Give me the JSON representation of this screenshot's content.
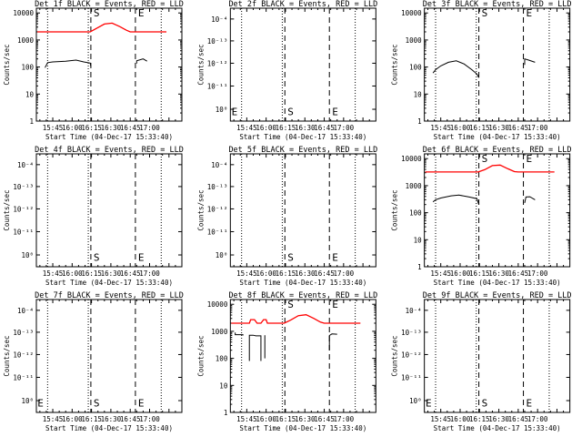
{
  "chart_data": [
    {
      "type": "line",
      "title": "Det 1f BLACK = Events, RED = LLD",
      "xlabel": "Start Time (04-Dec-17 15:33:40)",
      "ylabel": "Counts/sec",
      "yscale": "log",
      "ylim": [
        1,
        15000
      ],
      "yticks": [
        1,
        10,
        100,
        1000,
        10000
      ],
      "yticklabels": [
        "1",
        "10",
        "100",
        "1000",
        "10000"
      ],
      "xticks": [
        0,
        15,
        30,
        45,
        60,
        75,
        90
      ],
      "xticklabels": [
        "15:45",
        "16:00",
        "16:15",
        "16:30",
        "16:45",
        "17:00",
        ""
      ],
      "xlim": [
        -12.7,
        100
      ],
      "dotted_lines": [
        -4,
        27.5,
        84
      ],
      "dashed_lines": [
        29.5,
        64
      ],
      "markers": [
        {
          "label": "S",
          "x": 29.5
        },
        {
          "label": "E",
          "x": 64
        }
      ],
      "marker_y": 10000,
      "series": [
        {
          "color": "#000000",
          "segments": [
            [
              [
                -6,
                95
              ],
              [
                -4,
                145
              ],
              [
                0,
                155
              ],
              [
                10,
                165
              ],
              [
                18,
                180
              ],
              [
                24,
                155
              ],
              [
                29,
                140
              ],
              [
                29.5,
                105
              ]
            ],
            [
              [
                65,
                135
              ],
              [
                65,
                170
              ],
              [
                70,
                200
              ],
              [
                73,
                165
              ]
            ]
          ]
        },
        {
          "color": "#ff0000",
          "segments": [
            [
              [
                -12,
                2000
              ],
              [
                29,
                2000
              ],
              [
                34,
                2700
              ],
              [
                40,
                3900
              ],
              [
                46,
                4200
              ],
              [
                52,
                3100
              ],
              [
                57,
                2300
              ],
              [
                60,
                2000
              ],
              [
                88,
                2000
              ]
            ]
          ]
        }
      ]
    },
    {
      "type": "line",
      "title": "Det 2f BLACK = Events, RED = LLD",
      "xlabel": "Start Time (04-Dec-17 15:33:40)",
      "ylabel": "Counts/sec",
      "yscale": "log",
      "ylim": [
        0.95,
        1.05
      ],
      "yticks": [
        0.96,
        0.98,
        1.0,
        1.02,
        1.04
      ],
      "yticklabels": [
        "10⁰",
        "10⁻¹¹",
        "10⁻¹²",
        "10⁻¹³",
        "10⁻⁴"
      ],
      "xticks": [
        0,
        15,
        30,
        45,
        60,
        75,
        90
      ],
      "xticklabels": [
        "15:45",
        "16:00",
        "16:15",
        "16:30",
        "16:45",
        "17:00",
        ""
      ],
      "xlim": [
        -12.7,
        100
      ],
      "dotted_lines": [
        -4,
        27.5,
        84
      ],
      "dashed_lines": [
        29.5,
        64
      ],
      "markers": [
        {
          "label": "E",
          "x": -12.5
        },
        {
          "label": "S",
          "x": 29.5
        },
        {
          "label": "E",
          "x": 64
        }
      ],
      "marker_y": 0.958,
      "series": []
    },
    {
      "type": "line",
      "title": "Det 3f BLACK = Events, RED = LLD",
      "xlabel": "Start Time (04-Dec-17 15:33:40)",
      "ylabel": "Counts/sec",
      "yscale": "log",
      "ylim": [
        1,
        15000
      ],
      "yticks": [
        1,
        10,
        100,
        1000,
        10000
      ],
      "yticklabels": [
        "1",
        "10",
        "100",
        "1000",
        "10000"
      ],
      "xticks": [
        0,
        15,
        30,
        45,
        60,
        75,
        90
      ],
      "xticklabels": [
        "15:45",
        "16:00",
        "16:15",
        "16:30",
        "16:45",
        "17:00",
        ""
      ],
      "xlim": [
        -12.7,
        100
      ],
      "dotted_lines": [
        -4,
        27.5,
        84
      ],
      "dashed_lines": [
        29.5,
        64
      ],
      "markers": [
        {
          "label": "S",
          "x": 29.5
        },
        {
          "label": "E",
          "x": 64
        }
      ],
      "marker_y": 10000,
      "series": [
        {
          "color": "#000000",
          "segments": [
            [
              [
                -6,
                60
              ],
              [
                -4,
                80
              ],
              [
                0,
                110
              ],
              [
                6,
                150
              ],
              [
                12,
                170
              ],
              [
                18,
                130
              ],
              [
                24,
                80
              ],
              [
                28,
                55
              ],
              [
                29.5,
                40
              ]
            ],
            [
              [
                65,
                120
              ],
              [
                65,
                200
              ],
              [
                68,
                180
              ],
              [
                73,
                150
              ]
            ]
          ]
        }
      ]
    },
    {
      "type": "line",
      "title": "Det 4f BLACK = Events, RED = LLD",
      "xlabel": "Start Time (04-Dec-17 15:33:40)",
      "ylabel": "Counts/sec",
      "yscale": "log",
      "ylim": [
        0.95,
        1.05
      ],
      "yticks": [
        0.96,
        0.98,
        1.0,
        1.02,
        1.04
      ],
      "yticklabels": [
        "10⁰",
        "10⁻¹¹",
        "10⁻¹²",
        "10⁻¹³",
        "10⁻⁴"
      ],
      "xticks": [
        0,
        15,
        30,
        45,
        60,
        75,
        90
      ],
      "xticklabels": [
        "15:45",
        "16:00",
        "16:15",
        "16:30",
        "16:45",
        "17:00",
        ""
      ],
      "xlim": [
        -12.7,
        100
      ],
      "dotted_lines": [
        -4,
        27.5,
        84
      ],
      "dashed_lines": [
        29.5,
        64
      ],
      "markers": [
        {
          "label": "S",
          "x": 29.5
        },
        {
          "label": "E",
          "x": 64
        }
      ],
      "marker_y": 0.958,
      "series": []
    },
    {
      "type": "line",
      "title": "Det 5f BLACK = Events, RED = LLD",
      "xlabel": "Start Time (04-Dec-17 15:33:40)",
      "ylabel": "Counts/sec",
      "yscale": "log",
      "ylim": [
        0.95,
        1.05
      ],
      "yticks": [
        0.96,
        0.98,
        1.0,
        1.02,
        1.04
      ],
      "yticklabels": [
        "10⁰",
        "10⁻¹¹",
        "10⁻¹²",
        "10⁻¹³",
        "10⁻⁴"
      ],
      "xticks": [
        0,
        15,
        30,
        45,
        60,
        75,
        90
      ],
      "xticklabels": [
        "15:45",
        "16:00",
        "16:15",
        "16:30",
        "16:45",
        "17:00",
        ""
      ],
      "xlim": [
        -12.7,
        100
      ],
      "dotted_lines": [
        -4,
        27.5,
        84
      ],
      "dashed_lines": [
        29.5,
        64
      ],
      "markers": [
        {
          "label": "S",
          "x": 29.5
        },
        {
          "label": "E",
          "x": 64
        }
      ],
      "marker_y": 0.958,
      "series": []
    },
    {
      "type": "line",
      "title": "Det 6f BLACK = Events, RED = LLD",
      "xlabel": "Start Time (04-Dec-17 15:33:40)",
      "ylabel": "Counts/sec",
      "yscale": "log",
      "ylim": [
        1,
        15000
      ],
      "yticks": [
        1,
        10,
        100,
        1000,
        10000
      ],
      "yticklabels": [
        "1",
        "10",
        "100",
        "1000",
        "10000"
      ],
      "xticks": [
        0,
        15,
        30,
        45,
        60,
        75,
        90
      ],
      "xticklabels": [
        "15:45",
        "16:00",
        "16:15",
        "16:30",
        "16:45",
        "17:00",
        ""
      ],
      "xlim": [
        -12.7,
        100
      ],
      "dotted_lines": [
        -4,
        27.5,
        84
      ],
      "dashed_lines": [
        29.5,
        64
      ],
      "markers": [
        {
          "label": "S",
          "x": 29.5
        },
        {
          "label": "E",
          "x": 64
        }
      ],
      "marker_y": 10000,
      "series": [
        {
          "color": "#000000",
          "segments": [
            [
              [
                -6,
                250
              ],
              [
                -4,
                300
              ],
              [
                0,
                350
              ],
              [
                8,
                420
              ],
              [
                14,
                450
              ],
              [
                22,
                380
              ],
              [
                28,
                330
              ],
              [
                29.5,
                200
              ]
            ],
            [
              [
                65,
                230
              ],
              [
                66,
                380
              ],
              [
                69,
                390
              ],
              [
                73,
                300
              ]
            ]
          ]
        },
        {
          "color": "#ff0000",
          "segments": [
            [
              [
                -12,
                3200
              ],
              [
                29,
                3200
              ],
              [
                34,
                3900
              ],
              [
                40,
                5500
              ],
              [
                46,
                5800
              ],
              [
                52,
                4200
              ],
              [
                57,
                3300
              ],
              [
                60,
                3200
              ],
              [
                88,
                3200
              ]
            ]
          ]
        }
      ]
    },
    {
      "type": "line",
      "title": "Det 7f BLACK = Events, RED = LLD",
      "xlabel": "Start Time (04-Dec-17 15:33:40)",
      "ylabel": "Counts/sec",
      "yscale": "log",
      "ylim": [
        0.95,
        1.05
      ],
      "yticks": [
        0.96,
        0.98,
        1.0,
        1.02,
        1.04
      ],
      "yticklabels": [
        "10⁰",
        "10⁻¹¹",
        "10⁻¹²",
        "10⁻¹³",
        "10⁻⁴"
      ],
      "xticks": [
        0,
        15,
        30,
        45,
        60,
        75,
        90
      ],
      "xticklabels": [
        "15:45",
        "16:00",
        "16:15",
        "16:30",
        "16:45",
        "17:00",
        ""
      ],
      "xlim": [
        -12.7,
        100
      ],
      "dotted_lines": [
        -4,
        27.5,
        84
      ],
      "dashed_lines": [
        29.5,
        64
      ],
      "markers": [
        {
          "label": "E",
          "x": -12.5
        },
        {
          "label": "S",
          "x": 29.5
        },
        {
          "label": "E",
          "x": 64
        }
      ],
      "marker_y": 0.958,
      "series": []
    },
    {
      "type": "line",
      "title": "Det 8f BLACK = Events, RED = LLD",
      "xlabel": "Start Time (04-Dec-17 15:33:40)",
      "ylabel": "Counts/sec",
      "yscale": "log",
      "ylim": [
        1,
        15000
      ],
      "yticks": [
        1,
        10,
        100,
        1000,
        10000
      ],
      "yticklabels": [
        "1",
        "10",
        "100",
        "1000",
        "10000"
      ],
      "xticks": [
        0,
        15,
        30,
        45,
        60,
        75,
        90
      ],
      "xticklabels": [
        "15:45",
        "16:00",
        "16:15",
        "16:30",
        "16:45",
        "17:00",
        ""
      ],
      "xlim": [
        -12.7,
        100
      ],
      "dotted_lines": [
        -4,
        27.5,
        84
      ],
      "dashed_lines": [
        29.5,
        64
      ],
      "markers": [
        {
          "label": "S",
          "x": 29.5
        },
        {
          "label": "E",
          "x": 64
        }
      ],
      "marker_y": 10000,
      "series": [
        {
          "color": "#000000",
          "segments": [
            [
              [
                -9,
                900
              ],
              [
                -9,
                750
              ],
              [
                -3,
                750
              ],
              [
                -3,
                700
              ]
            ],
            [
              [
                2,
                720
              ],
              [
                2,
                80
              ],
              [
                2,
                720
              ],
              [
                5,
                720
              ],
              [
                7,
                680
              ],
              [
                11,
                680
              ],
              [
                11,
                80
              ]
            ],
            [
              [
                14,
                720
              ],
              [
                14,
                100
              ]
            ],
            [
              [
                64,
                200
              ],
              [
                64,
                700
              ],
              [
                66,
                800
              ],
              [
                70,
                780
              ]
            ]
          ]
        },
        {
          "color": "#ff0000",
          "segments": [
            [
              [
                -12,
                2000
              ],
              [
                2,
                2000
              ],
              [
                3,
                2700
              ],
              [
                6,
                2700
              ],
              [
                8,
                2000
              ],
              [
                11,
                2000
              ],
              [
                13,
                2700
              ],
              [
                15,
                2700
              ],
              [
                16,
                2000
              ],
              [
                29,
                2000
              ],
              [
                34,
                2600
              ],
              [
                40,
                3800
              ],
              [
                46,
                4100
              ],
              [
                52,
                3000
              ],
              [
                57,
                2200
              ],
              [
                60,
                2000
              ],
              [
                88,
                2000
              ]
            ]
          ]
        }
      ]
    },
    {
      "type": "line",
      "title": "Det 9f BLACK = Events, RED = LLD",
      "xlabel": "Start Time (04-Dec-17 15:33:40)",
      "ylabel": "Counts/sec",
      "yscale": "log",
      "ylim": [
        0.95,
        1.05
      ],
      "yticks": [
        0.96,
        0.98,
        1.0,
        1.02,
        1.04
      ],
      "yticklabels": [
        "10⁰",
        "10⁻¹¹",
        "10⁻¹²",
        "10⁻¹³",
        "10⁻⁴"
      ],
      "xticks": [
        0,
        15,
        30,
        45,
        60,
        75,
        90
      ],
      "xticklabels": [
        "15:45",
        "16:00",
        "16:15",
        "16:30",
        "16:45",
        "17:00",
        ""
      ],
      "xlim": [
        -12.7,
        100
      ],
      "dotted_lines": [
        -4,
        27.5,
        84
      ],
      "dashed_lines": [
        29.5,
        64
      ],
      "markers": [
        {
          "label": "E",
          "x": -12.5
        },
        {
          "label": "S",
          "x": 29.5
        },
        {
          "label": "E",
          "x": 64
        }
      ],
      "marker_y": 0.958,
      "series": []
    }
  ]
}
